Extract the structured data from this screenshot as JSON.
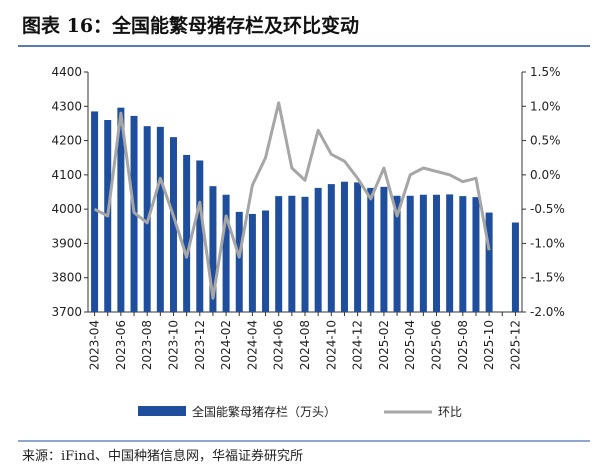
{
  "chart_data": {
    "type": "bar_line",
    "title": "图表 16：全国能繁母猪存栏及环比变动",
    "source": "来源：iFind、中国种猪信息网，华福证券研究所",
    "categories": [
      "2023-04",
      null,
      "2023-06",
      null,
      "2023-08",
      null,
      "2023-10",
      null,
      "2023-12",
      null,
      "2024-02",
      null,
      "2024-04",
      null,
      "2024-06",
      null,
      "2024-08",
      null,
      "2024-10",
      null,
      "2024-12",
      null,
      "2025-02",
      null,
      "2025-04",
      null,
      "2025-06",
      null,
      "2025-08",
      null,
      "2025-10",
      null,
      "2025-12"
    ],
    "series": [
      {
        "name": "全国能繁母猪存栏（万头）",
        "color": "#1f4e9c",
        "kind": "bar",
        "values": [
          4285,
          4260,
          4296,
          4272,
          4242,
          4240,
          4210,
          4158,
          4142,
          4067,
          4042,
          3992,
          3986,
          3996,
          4038,
          4039,
          4036,
          4062,
          4073,
          4080,
          4078,
          4062,
          4065,
          4039,
          4039,
          4042,
          4042,
          4043,
          4038,
          4035,
          3990,
          null,
          3961
        ]
      },
      {
        "name": "环比",
        "color": "#a6a6a6",
        "kind": "line",
        "axis": "y2",
        "values": [
          -0.5,
          -0.6,
          0.9,
          -0.55,
          -0.7,
          -0.05,
          -0.6,
          -1.2,
          -0.4,
          -1.8,
          -0.6,
          -1.2,
          -0.15,
          0.25,
          1.05,
          0.1,
          -0.08,
          0.65,
          0.3,
          0.2,
          -0.05,
          -0.35,
          0.1,
          -0.6,
          0,
          0.1,
          0.05,
          0,
          -0.1,
          -0.05,
          -1.1,
          null,
          null
        ]
      }
    ],
    "ylim": [
      3700,
      4400
    ],
    "yticks": [
      3700,
      3800,
      3900,
      4000,
      4100,
      4200,
      4300,
      4400
    ],
    "y2lim": [
      -2.0,
      1.5
    ],
    "y2ticks": [
      {
        "value": -2.0,
        "label": "-2.0%"
      },
      {
        "value": -1.5,
        "label": "-1.5%"
      },
      {
        "value": -1.0,
        "label": "-1.0%"
      },
      {
        "value": -0.5,
        "label": "-0.5%"
      },
      {
        "value": 0,
        "label": "0.0%"
      },
      {
        "value": 0.5,
        "label": "0.5%"
      },
      {
        "value": 1.0,
        "label": "1.0%"
      },
      {
        "value": 1.5,
        "label": "1.5%"
      }
    ]
  }
}
